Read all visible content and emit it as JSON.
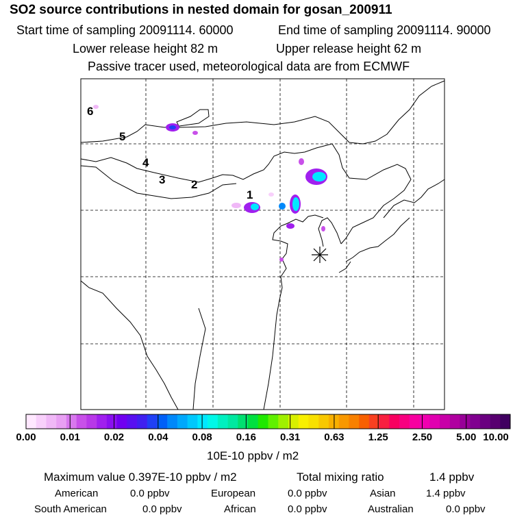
{
  "chart_data": {
    "type": "heatmap",
    "title": "SO2 source contributions in nested domain for gosan_200911",
    "subtitle_lines": {
      "start_label": "Start time of sampling 20091114. 60000",
      "end_label": "End time of sampling 20091114. 90000",
      "lower_label": "Lower release height   82 m",
      "upper_label": "Upper release height   62 m",
      "tracer_label": "Passive tracer used, meteorological data are from ECMWF"
    },
    "region_labels": [
      "1",
      "2",
      "3",
      "4",
      "5",
      "6"
    ],
    "receptor": "Gosan",
    "colorbar": {
      "ticks": [
        "0.00",
        "0.01",
        "0.02",
        "0.04",
        "0.08",
        "0.16",
        "0.31",
        "0.63",
        "1.25",
        "2.50",
        "5.00",
        "10.00"
      ],
      "units": "10E-10 ppbv / m2",
      "colors": [
        "#ffe8ff",
        "#f8d0fb",
        "#f0b8f7",
        "#e8a0f3",
        "#d878ee",
        "#c850e9",
        "#b838e8",
        "#a020ee",
        "#8a10f0",
        "#7000f0",
        "#5810f0",
        "#4020f0",
        "#2040f5",
        "#0060f8",
        "#0088fa",
        "#00a8fc",
        "#00c8fd",
        "#00e8ff",
        "#00f8e8",
        "#00f0c0",
        "#00e8a0",
        "#00e070",
        "#00e040",
        "#20e800",
        "#60f000",
        "#a0f000",
        "#d8f000",
        "#f8f000",
        "#f8e000",
        "#f8c800",
        "#f8b000",
        "#f89800",
        "#f88000",
        "#f86000",
        "#f84020",
        "#f82040",
        "#f80060",
        "#f80080",
        "#f800a0",
        "#f000b0",
        "#e000b0",
        "#c800a8",
        "#b000a0",
        "#980098",
        "#800090",
        "#6a0080",
        "#580070",
        "#400060"
      ]
    }
  },
  "stats": {
    "max_label": "Maximum value  0.397E-10 ppbv / m2",
    "total_label": "Total mixing ratio",
    "total_value": "1.4 ppbv",
    "american_label": "American",
    "american_value": "0.0 ppbv",
    "european_label": "European",
    "european_value": "0.0 ppbv",
    "asian_label": "Asian",
    "asian_value": "1.4 ppbv",
    "south_american_label": "South American",
    "south_american_value": "0.0 ppbv",
    "african_label": "African",
    "african_value": "0.0 ppbv",
    "australian_label": "Australian",
    "australian_value": "0.0 ppbv"
  }
}
